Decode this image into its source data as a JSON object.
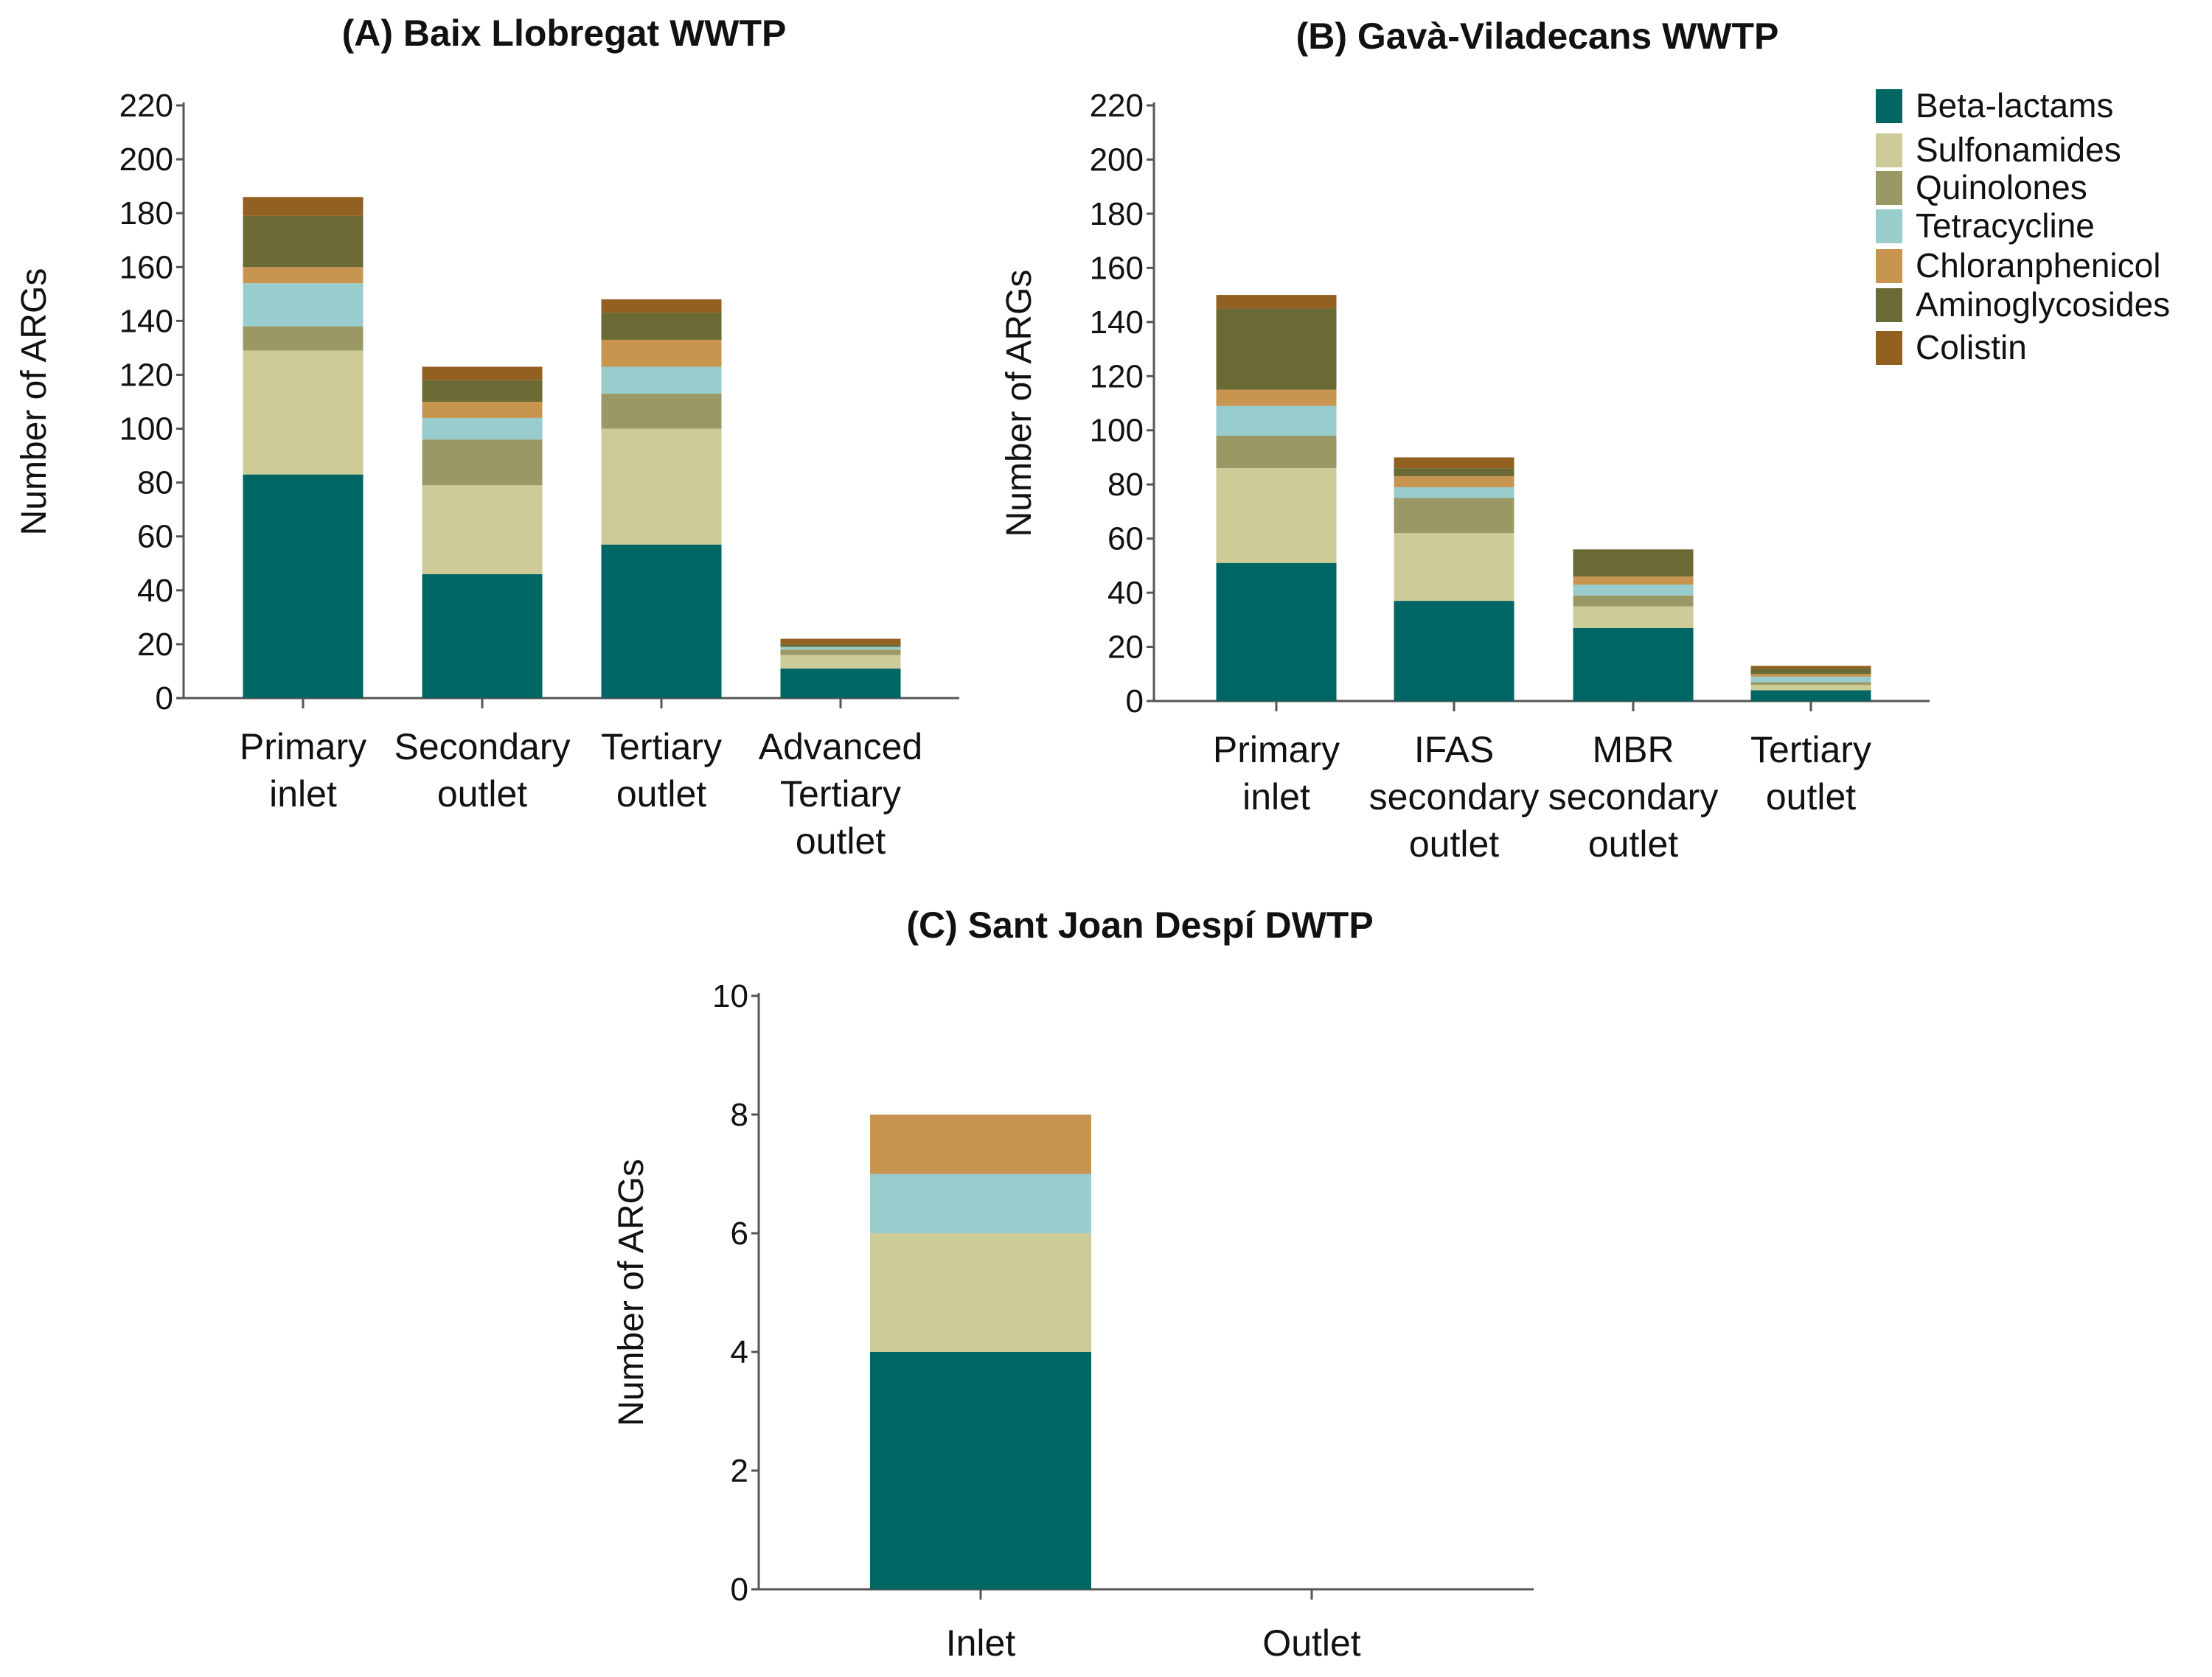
{
  "legend": {
    "entries": [
      "Beta-lactams",
      "Sulfonamides",
      "Quinolones",
      "Tetracycline",
      "Chloranphenicol",
      "Aminoglycosides",
      "Colistin"
    ],
    "colors": [
      "#006663",
      "#cdcc99",
      "#9a9966",
      "#99cccc",
      "#c89550",
      "#6b6a35",
      "#926020"
    ],
    "placement": "top-right"
  },
  "chart_data": [
    {
      "type": "bar",
      "stacked": true,
      "title": "(A) Baix Llobregat WWTP",
      "ylabel": "Number of ARGs",
      "xlabel": "",
      "ylim": [
        0,
        220
      ],
      "ytick_step": 20,
      "categories": [
        [
          "Primary",
          "inlet"
        ],
        [
          "Secondary",
          "outlet"
        ],
        [
          "Tertiary",
          "outlet"
        ],
        [
          "Advanced",
          "Tertiary",
          "outlet"
        ]
      ],
      "series": [
        {
          "name": "Beta-lactams",
          "values": [
            83,
            46,
            57,
            11
          ]
        },
        {
          "name": "Sulfonamides",
          "values": [
            46,
            33,
            43,
            5
          ]
        },
        {
          "name": "Quinolones",
          "values": [
            9,
            17,
            13,
            2
          ]
        },
        {
          "name": "Tetracycline",
          "values": [
            16,
            8,
            10,
            1
          ]
        },
        {
          "name": "Chloranphenicol",
          "values": [
            6,
            6,
            10,
            0
          ]
        },
        {
          "name": "Aminoglycosides",
          "values": [
            19,
            8,
            10,
            1
          ]
        },
        {
          "name": "Colistin",
          "values": [
            7,
            5,
            5,
            2
          ]
        }
      ]
    },
    {
      "type": "bar",
      "stacked": true,
      "title": "(B) Gavà-Viladecans WWTP",
      "ylabel": "Number of ARGs",
      "xlabel": "",
      "ylim": [
        0,
        220
      ],
      "ytick_step": 20,
      "categories": [
        [
          "Primary",
          "inlet"
        ],
        [
          "IFAS",
          "secondary",
          "outlet"
        ],
        [
          "MBR",
          "secondary",
          "outlet"
        ],
        [
          "Tertiary",
          "outlet"
        ]
      ],
      "series": [
        {
          "name": "Beta-lactams",
          "values": [
            51,
            37,
            27,
            4
          ]
        },
        {
          "name": "Sulfonamides",
          "values": [
            35,
            25,
            8,
            2
          ]
        },
        {
          "name": "Quinolones",
          "values": [
            12,
            13,
            4,
            1
          ]
        },
        {
          "name": "Tetracycline",
          "values": [
            11,
            4,
            4,
            2
          ]
        },
        {
          "name": "Chloranphenicol",
          "values": [
            6,
            4,
            3,
            1
          ]
        },
        {
          "name": "Aminoglycosides",
          "values": [
            30,
            3,
            10,
            2
          ]
        },
        {
          "name": "Colistin",
          "values": [
            5,
            4,
            0,
            1
          ]
        }
      ]
    },
    {
      "type": "bar",
      "stacked": true,
      "title": "(C) Sant Joan Despí DWTP",
      "ylabel": "Number of ARGs",
      "xlabel": "",
      "ylim": [
        0,
        10
      ],
      "ytick_step": 2,
      "categories": [
        [
          "Inlet"
        ],
        [
          "Outlet"
        ]
      ],
      "series": [
        {
          "name": "Beta-lactams",
          "values": [
            4,
            0
          ]
        },
        {
          "name": "Sulfonamides",
          "values": [
            2,
            0
          ]
        },
        {
          "name": "Quinolones",
          "values": [
            0,
            0
          ]
        },
        {
          "name": "Tetracycline",
          "values": [
            1,
            0
          ]
        },
        {
          "name": "Chloranphenicol",
          "values": [
            1,
            0
          ]
        },
        {
          "name": "Aminoglycosides",
          "values": [
            0,
            0
          ]
        },
        {
          "name": "Colistin",
          "values": [
            0,
            0
          ]
        }
      ]
    }
  ]
}
